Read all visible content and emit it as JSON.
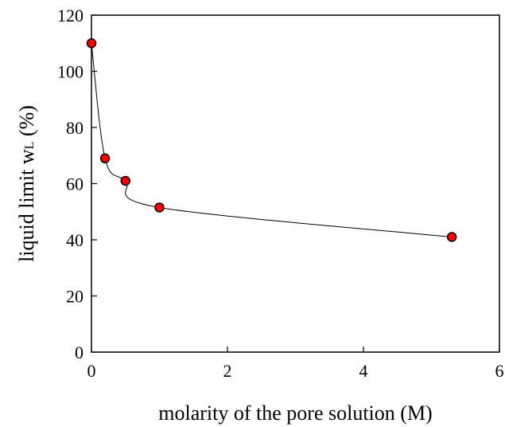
{
  "chart_data": {
    "type": "scatter",
    "xlabel": "molarity of the pore solution (M)",
    "ylabel": "liquid limit w",
    "ylabel_subscript": "L",
    "ylabel_suffix": " (%)",
    "xlim": [
      0,
      6
    ],
    "ylim": [
      0,
      120
    ],
    "x_ticks": [
      0,
      2,
      4,
      6
    ],
    "y_ticks": [
      0,
      20,
      40,
      60,
      80,
      100,
      120
    ],
    "grid": false,
    "legend": "none",
    "series": [
      {
        "x": [
          0,
          0.2,
          0.5,
          1.0,
          5.3
        ],
        "y": [
          110,
          69,
          61,
          51.5,
          41
        ],
        "marker_color": "#ff0000",
        "marker_edge_color": "#000000",
        "line_color": "#000000",
        "line_style": "smooth"
      }
    ]
  }
}
